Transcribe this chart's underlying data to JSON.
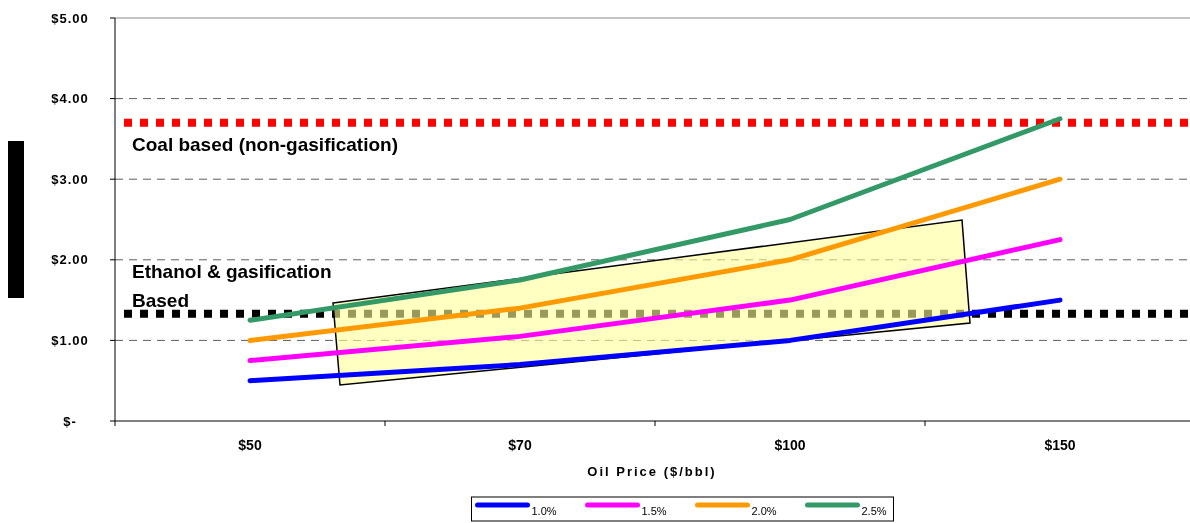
{
  "chart_data": {
    "type": "line",
    "xlabel": "Oil Price ($/bbl)",
    "categories": [
      "$50",
      "$70",
      "$100",
      "$150"
    ],
    "series": [
      {
        "name": "1.0%",
        "color": "#0000ff",
        "values": [
          0.5,
          0.7,
          1.0,
          1.5
        ]
      },
      {
        "name": "1.5%",
        "color": "#ff00ff",
        "values": [
          0.75,
          1.05,
          1.5,
          2.25
        ]
      },
      {
        "name": "2.0%",
        "color": "#ff9900",
        "values": [
          1.0,
          1.4,
          2.0,
          3.0
        ]
      },
      {
        "name": "2.5%",
        "color": "#339966",
        "values": [
          1.25,
          1.75,
          2.5,
          3.75
        ]
      }
    ],
    "ylim": [
      0,
      5
    ],
    "yticks": [
      {
        "value": 0,
        "label": "$-"
      },
      {
        "value": 1,
        "label": "$1.00"
      },
      {
        "value": 2,
        "label": "$2.00"
      },
      {
        "value": 3,
        "label": "$3.00"
      },
      {
        "value": 4,
        "label": "$4.00"
      },
      {
        "value": 5,
        "label": "$5.00"
      }
    ],
    "ref_lines": [
      {
        "axis": "y",
        "value": 3.7,
        "label": "Coal based (non-gasification)",
        "color": "#ff0000",
        "line_style": "dotted"
      },
      {
        "axis": "y",
        "value": 1.33,
        "label": "Ethanol & gasification\nBased",
        "color": "#000000",
        "line_style": "dotted"
      }
    ],
    "grid": "y",
    "legend": "bottom",
    "marker": "none",
    "line_style": "solid"
  }
}
